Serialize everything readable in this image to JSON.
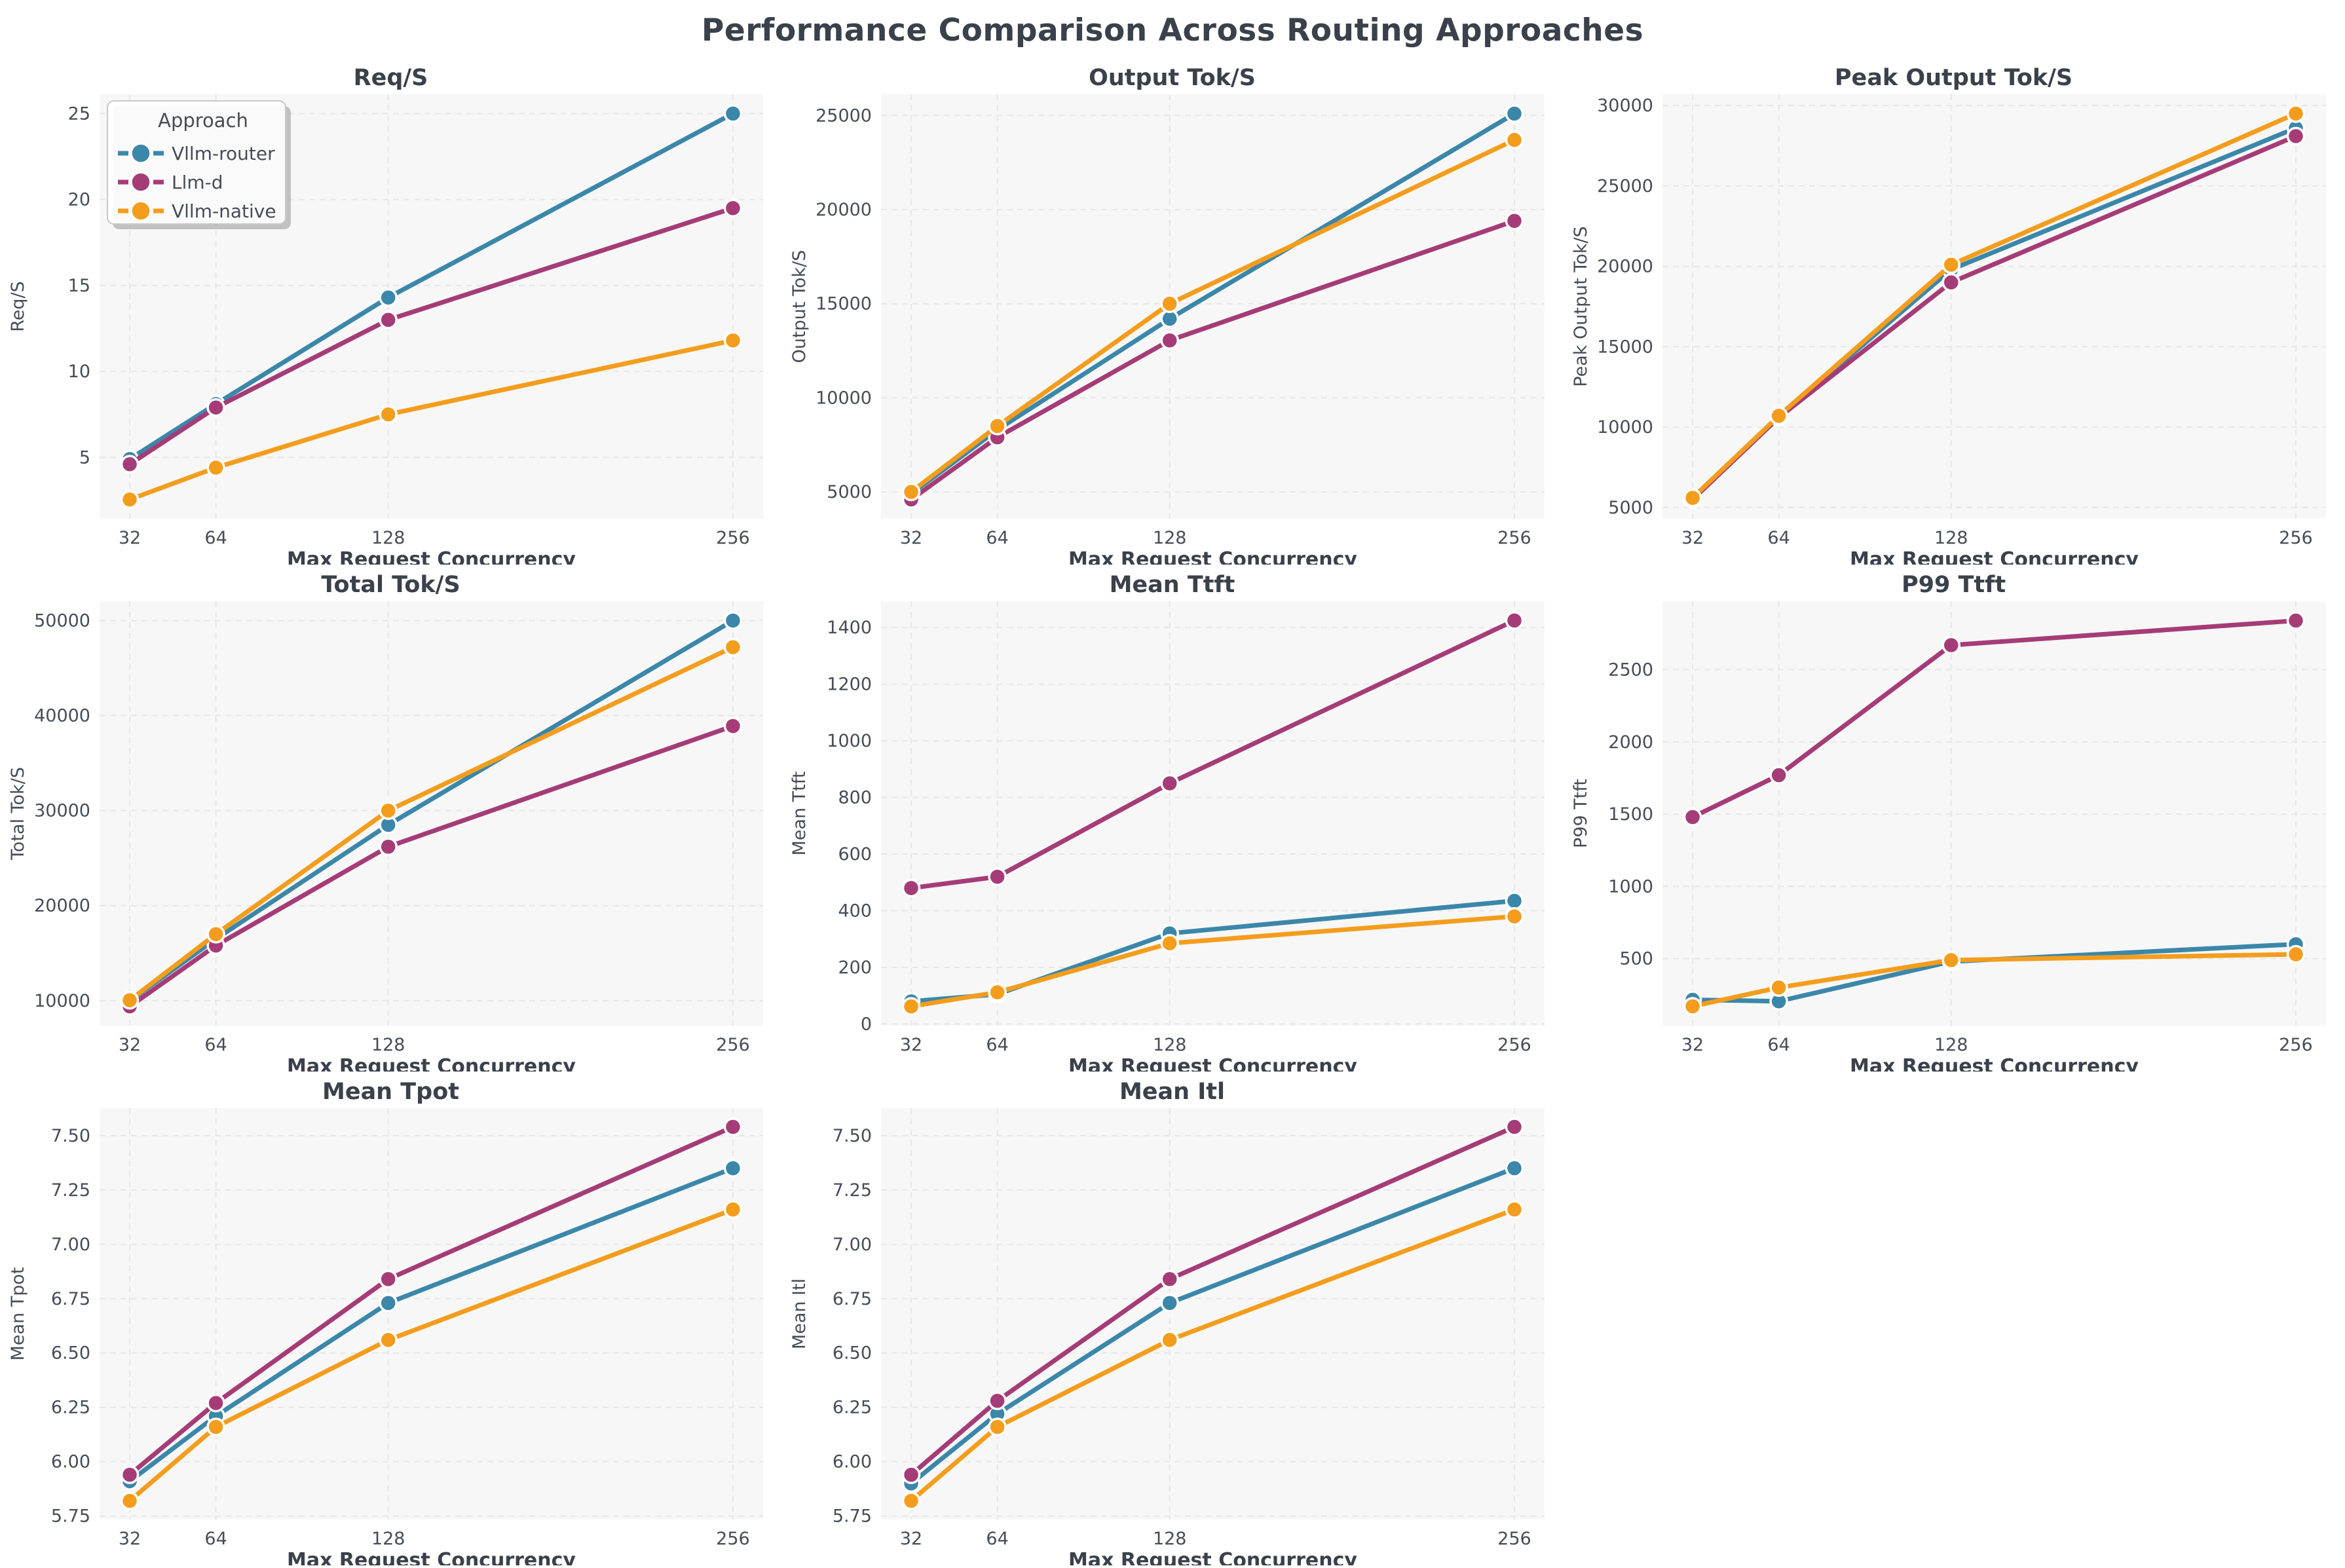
{
  "page": {
    "title": "Performance Comparison Across Routing Approaches",
    "background": "#ffffff",
    "text_color": "#3a414b",
    "tick_color": "#464d56",
    "plot_bg": "#f7f7f7",
    "grid_color": "#e7e7e7"
  },
  "legend": {
    "title": "Approach",
    "position": "upper-left",
    "items": [
      {
        "label": "Vllm-router",
        "color": "#3b87aa"
      },
      {
        "label": "Llm-d",
        "color": "#a53c77"
      },
      {
        "label": "Vllm-native",
        "color": "#f49d1d"
      }
    ]
  },
  "chart_data": [
    {
      "type": "line",
      "title": "Req/S",
      "ylabel": "Req/S",
      "xlabel": "Max Request Concurrency",
      "x": [
        32,
        64,
        128,
        256
      ],
      "xlim": [
        20.8,
        267.2
      ],
      "ylim": [
        1.43,
        26.12
      ],
      "yticks": [
        5,
        10,
        15,
        20,
        25
      ],
      "ytick_labels": [
        "5",
        "10",
        "15",
        "20",
        "25"
      ],
      "grid": true,
      "legend": true,
      "series": [
        {
          "name": "Vllm-router",
          "color": "#3b87aa",
          "values": [
            4.9,
            8.1,
            14.3,
            25.0
          ]
        },
        {
          "name": "Llm-d",
          "color": "#a53c77",
          "values": [
            4.6,
            7.9,
            13.0,
            19.5
          ]
        },
        {
          "name": "Vllm-native",
          "color": "#f49d1d",
          "values": [
            2.55,
            4.4,
            7.5,
            11.8
          ]
        }
      ]
    },
    {
      "type": "line",
      "title": "Output Tok/S",
      "ylabel": "Output Tok/S",
      "xlabel": "Max Request Concurrency",
      "x": [
        32,
        64,
        128,
        256
      ],
      "xlim": [
        20.8,
        267.2
      ],
      "ylim": [
        3575,
        26125
      ],
      "yticks": [
        5000,
        10000,
        15000,
        20000,
        25000
      ],
      "ytick_labels": [
        "5000",
        "10000",
        "15000",
        "20000",
        "25000"
      ],
      "grid": true,
      "legend": false,
      "series": [
        {
          "name": "Vllm-router",
          "color": "#3b87aa",
          "values": [
            4900,
            8300,
            14200,
            25100
          ]
        },
        {
          "name": "Llm-d",
          "color": "#a53c77",
          "values": [
            4600,
            7900,
            13050,
            19400
          ]
        },
        {
          "name": "Vllm-native",
          "color": "#f49d1d",
          "values": [
            5000,
            8500,
            15000,
            23700
          ]
        }
      ]
    },
    {
      "type": "line",
      "title": "Peak Output Tok/S",
      "ylabel": "Peak Output Tok/S",
      "xlabel": "Max Request Concurrency",
      "x": [
        32,
        64,
        128,
        256
      ],
      "xlim": [
        20.8,
        267.2
      ],
      "ylim": [
        4300,
        30700
      ],
      "yticks": [
        5000,
        10000,
        15000,
        20000,
        25000,
        30000
      ],
      "ytick_labels": [
        "5000",
        "10000",
        "15000",
        "20000",
        "25000",
        "30000"
      ],
      "grid": true,
      "legend": false,
      "series": [
        {
          "name": "Vllm-router",
          "color": "#3b87aa",
          "values": [
            5550,
            10650,
            19800,
            28600
          ]
        },
        {
          "name": "Llm-d",
          "color": "#a53c77",
          "values": [
            5500,
            10600,
            19000,
            28100
          ]
        },
        {
          "name": "Vllm-native",
          "color": "#f49d1d",
          "values": [
            5600,
            10700,
            20100,
            29500
          ]
        }
      ]
    },
    {
      "type": "line",
      "title": "Total Tok/S",
      "ylabel": "Total Tok/S",
      "xlabel": "Max Request Concurrency",
      "x": [
        32,
        64,
        128,
        256
      ],
      "xlim": [
        20.8,
        267.2
      ],
      "ylim": [
        7370,
        52030
      ],
      "yticks": [
        10000,
        20000,
        30000,
        40000,
        50000
      ],
      "ytick_labels": [
        "10000",
        "20000",
        "30000",
        "40000",
        "50000"
      ],
      "grid": true,
      "legend": false,
      "series": [
        {
          "name": "Vllm-router",
          "color": "#3b87aa",
          "values": [
            10000,
            16500,
            28500,
            50000
          ]
        },
        {
          "name": "Llm-d",
          "color": "#a53c77",
          "values": [
            9400,
            15800,
            26200,
            38900
          ]
        },
        {
          "name": "Vllm-native",
          "color": "#f49d1d",
          "values": [
            10050,
            17000,
            30000,
            47200
          ]
        }
      ]
    },
    {
      "type": "line",
      "title": "Mean Ttft",
      "ylabel": "Mean Ttft",
      "xlabel": "Max Request Concurrency",
      "x": [
        32,
        64,
        128,
        256
      ],
      "xlim": [
        20.8,
        267.2
      ],
      "ylim": [
        -6,
        1493
      ],
      "yticks": [
        0,
        200,
        400,
        600,
        800,
        1000,
        1200,
        1400
      ],
      "ytick_labels": [
        "0",
        "200",
        "400",
        "600",
        "800",
        "1000",
        "1200",
        "1400"
      ],
      "grid": true,
      "legend": false,
      "series": [
        {
          "name": "Vllm-router",
          "color": "#3b87aa",
          "values": [
            80,
            105,
            320,
            435
          ]
        },
        {
          "name": "Llm-d",
          "color": "#a53c77",
          "values": [
            480,
            520,
            850,
            1425
          ]
        },
        {
          "name": "Vllm-native",
          "color": "#f49d1d",
          "values": [
            62,
            112,
            285,
            380
          ]
        }
      ]
    },
    {
      "type": "line",
      "title": "P99 Ttft",
      "ylabel": "P99 Ttft",
      "xlabel": "Max Request Concurrency",
      "x": [
        32,
        64,
        128,
        256
      ],
      "xlim": [
        20.8,
        267.2
      ],
      "ylim": [
        36,
        2974
      ],
      "yticks": [
        500,
        1000,
        1500,
        2000,
        2500
      ],
      "ytick_labels": [
        "500",
        "1000",
        "1500",
        "2000",
        "2500"
      ],
      "grid": true,
      "legend": false,
      "series": [
        {
          "name": "Vllm-router",
          "color": "#3b87aa",
          "values": [
            215,
            205,
            480,
            600
          ]
        },
        {
          "name": "Llm-d",
          "color": "#a53c77",
          "values": [
            1480,
            1770,
            2670,
            2840
          ]
        },
        {
          "name": "Vllm-native",
          "color": "#f49d1d",
          "values": [
            170,
            300,
            490,
            530
          ]
        }
      ]
    },
    {
      "type": "line",
      "title": "Mean Tpot",
      "ylabel": "Mean Tpot",
      "xlabel": "Max Request Concurrency",
      "x": [
        32,
        64,
        128,
        256
      ],
      "xlim": [
        20.8,
        267.2
      ],
      "ylim": [
        5.734,
        7.626
      ],
      "yticks": [
        5.75,
        6.0,
        6.25,
        6.5,
        6.75,
        7.0,
        7.25,
        7.5
      ],
      "ytick_labels": [
        "5.75",
        "6.00",
        "6.25",
        "6.50",
        "6.75",
        "7.00",
        "7.25",
        "7.50"
      ],
      "grid": true,
      "legend": false,
      "series": [
        {
          "name": "Vllm-router",
          "color": "#3b87aa",
          "values": [
            5.91,
            6.21,
            6.73,
            7.35
          ]
        },
        {
          "name": "Llm-d",
          "color": "#a53c77",
          "values": [
            5.94,
            6.27,
            6.84,
            7.54
          ]
        },
        {
          "name": "Vllm-native",
          "color": "#f49d1d",
          "values": [
            5.82,
            6.16,
            6.56,
            7.16
          ]
        }
      ]
    },
    {
      "type": "line",
      "title": "Mean Itl",
      "ylabel": "Mean Itl",
      "xlabel": "Max Request Concurrency",
      "x": [
        32,
        64,
        128,
        256
      ],
      "xlim": [
        20.8,
        267.2
      ],
      "ylim": [
        5.734,
        7.626
      ],
      "yticks": [
        5.75,
        6.0,
        6.25,
        6.5,
        6.75,
        7.0,
        7.25,
        7.5
      ],
      "ytick_labels": [
        "5.75",
        "6.00",
        "6.25",
        "6.50",
        "6.75",
        "7.00",
        "7.25",
        "7.50"
      ],
      "grid": true,
      "legend": false,
      "series": [
        {
          "name": "Vllm-router",
          "color": "#3b87aa",
          "values": [
            5.9,
            6.22,
            6.73,
            7.35
          ]
        },
        {
          "name": "Llm-d",
          "color": "#a53c77",
          "values": [
            5.94,
            6.28,
            6.84,
            7.54
          ]
        },
        {
          "name": "Vllm-native",
          "color": "#f49d1d",
          "values": [
            5.82,
            6.16,
            6.56,
            7.16
          ]
        }
      ]
    }
  ]
}
